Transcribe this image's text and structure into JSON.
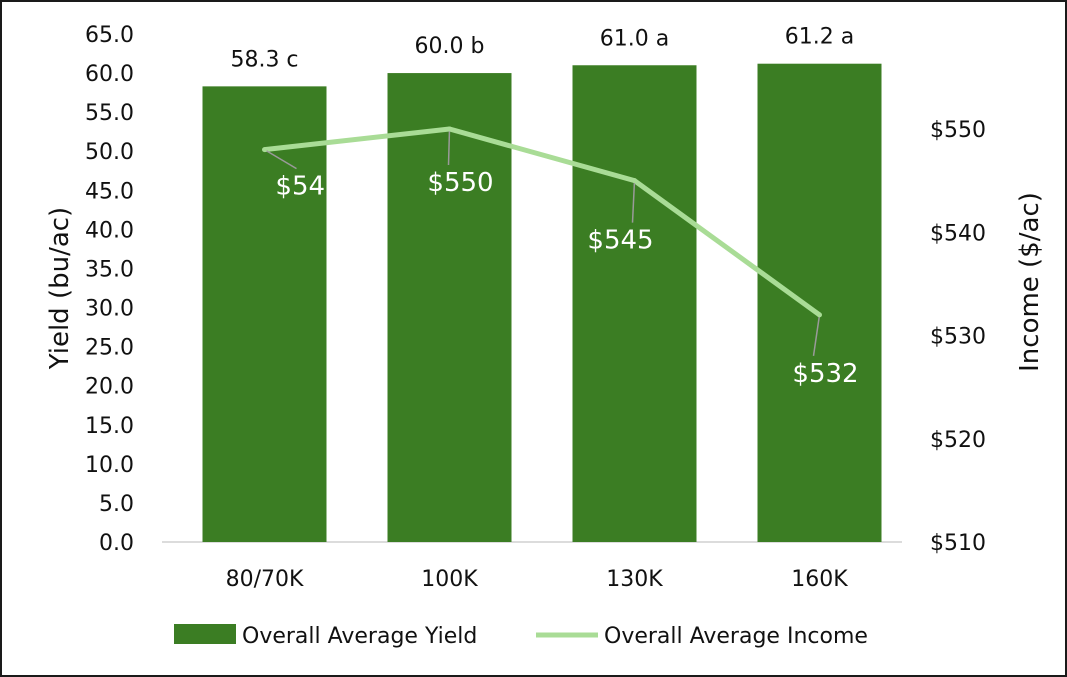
{
  "chart_data": {
    "type": "bar",
    "categories": [
      "80/70K",
      "100K",
      "130K",
      "160K"
    ],
    "series": [
      {
        "name": "Overall Average Yield",
        "kind": "bar",
        "axis": "left",
        "color": "#3b7d23",
        "values": [
          58.3,
          60.0,
          61.0,
          61.2
        ],
        "labels": [
          "58.3 c",
          "60.0 b",
          "61.0 a",
          "61.2 a"
        ]
      },
      {
        "name": "Overall  Average Income",
        "kind": "line",
        "axis": "right",
        "color": "#a9dc96",
        "values": [
          548,
          550,
          545,
          532
        ],
        "labels": [
          "$548",
          "$550",
          "$545",
          "$532"
        ]
      }
    ],
    "y_left": {
      "label": "Yield (bu/ac)",
      "min": 0,
      "max": 65,
      "step": 5,
      "tick_labels": [
        "0.0",
        "5.0",
        "10.0",
        "15.0",
        "20.0",
        "25.0",
        "30.0",
        "35.0",
        "40.0",
        "45.0",
        "50.0",
        "55.0",
        "60.0",
        "65.0"
      ]
    },
    "y_right": {
      "label": "Income ($/ac)",
      "min": 510,
      "max": 555,
      "step": 10,
      "tick_labels": [
        "$510",
        "$520",
        "$530",
        "$540",
        "$550"
      ]
    },
    "grid": false,
    "legend": "bottom"
  }
}
